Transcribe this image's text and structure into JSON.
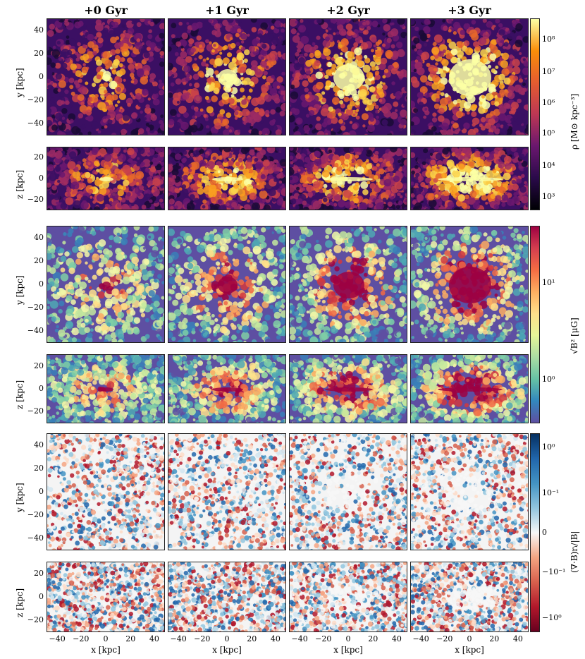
{
  "columns": [
    "+0 Gyr",
    "+1 Gyr",
    "+2 Gyr",
    "+3 Gyr"
  ],
  "row_labels": {
    "face": "y [kpc]",
    "edge": "z [kpc]"
  },
  "y_ticks_face": [
    "40",
    "20",
    "0",
    "−20",
    "−40"
  ],
  "y_ticks_edge": [
    "20",
    "0",
    "−20"
  ],
  "x_ticks": [
    "−40",
    "−20",
    "0",
    "20",
    "40"
  ],
  "x_label": "x [kpc]",
  "colorbars": {
    "density": {
      "label": "ρ [M⊙ kpc⁻³]",
      "ticks": [
        "10⁸",
        "10⁷",
        "10⁶",
        "10⁵",
        "10⁴",
        "10³"
      ],
      "colormap": "inferno"
    },
    "bfield": {
      "label": "√B² [μG]",
      "ticks": [
        "10¹",
        "10⁰"
      ],
      "colormap": "spectral"
    },
    "divb": {
      "label": "(∇·B)rᵢ/|B|",
      "ticks": [
        "10⁰",
        "10⁻¹",
        "0",
        "−10⁻¹",
        "−10⁰"
      ],
      "colormap": "rdbu"
    }
  }
}
